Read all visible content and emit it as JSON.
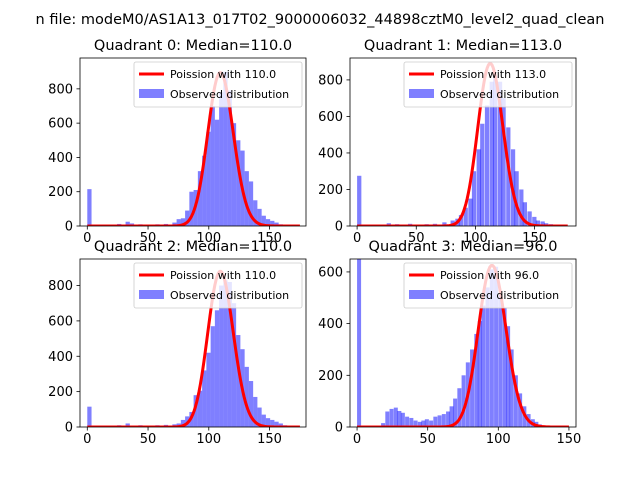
{
  "suptitle": "n file: modeM0/AS1A13_017T02_9000006032_44898cztM0_level2_quad_clean",
  "colors": {
    "fit": "#ff0000",
    "hist": "#0000ff"
  },
  "chart_data": [
    {
      "type": "bar",
      "title": "Quadrant 0: Median=110.0",
      "xlim": [
        -6,
        180
      ],
      "ylim": [
        0,
        980
      ],
      "xticks": [
        0,
        50,
        100,
        150
      ],
      "yticks": [
        0,
        200,
        400,
        600,
        800
      ],
      "legend": {
        "placement": "top-right",
        "entries": [
          "Poission with 110.0",
          "Observed distribution"
        ]
      },
      "series": [
        {
          "name": "Observed distribution",
          "kind": "histogram",
          "bin_width": 3.5,
          "x": [
            0,
            24.5,
            31.5,
            35,
            42,
            49,
            56,
            63,
            70,
            73.5,
            77,
            80.5,
            84,
            87.5,
            91,
            94.5,
            98,
            101.5,
            105,
            108.5,
            112,
            115.5,
            119,
            122.5,
            126,
            129.5,
            133,
            136.5,
            140,
            143.5,
            147,
            150.5,
            154,
            157.5,
            161,
            164.5,
            168
          ],
          "y": [
            215,
            12,
            25,
            15,
            10,
            8,
            10,
            12,
            20,
            40,
            45,
            90,
            200,
            210,
            320,
            410,
            550,
            700,
            620,
            780,
            900,
            790,
            600,
            500,
            440,
            320,
            260,
            150,
            100,
            60,
            40,
            30,
            20,
            10,
            8,
            5,
            3
          ]
        },
        {
          "name": "Poission with 110.0",
          "kind": "line",
          "mu": 110,
          "amplitude": 895,
          "x_max": 175
        }
      ]
    },
    {
      "type": "bar",
      "title": "Quadrant 1: Median=113.0",
      "xlim": [
        -6,
        185
      ],
      "ylim": [
        0,
        920
      ],
      "xticks": [
        0,
        50,
        100,
        150
      ],
      "yticks": [
        0,
        200,
        400,
        600,
        800
      ],
      "legend": {
        "placement": "top-right",
        "entries": [
          "Poission with 113.0",
          "Observed distribution"
        ]
      },
      "series": [
        {
          "name": "Observed distribution",
          "kind": "histogram",
          "bin_width": 3.6,
          "x": [
            0,
            25,
            32,
            43,
            50,
            57,
            64,
            72,
            79,
            83,
            86,
            90,
            94,
            97,
            101,
            104,
            108,
            112,
            115,
            119,
            122,
            126,
            130,
            133,
            137,
            140,
            144,
            148,
            151,
            155,
            158,
            162,
            166,
            170
          ],
          "y": [
            275,
            15,
            10,
            12,
            8,
            10,
            12,
            20,
            30,
            40,
            60,
            100,
            150,
            300,
            420,
            560,
            660,
            790,
            820,
            790,
            700,
            540,
            420,
            300,
            200,
            130,
            80,
            50,
            30,
            25,
            15,
            10,
            6,
            4
          ]
        },
        {
          "name": "Poission with 113.0",
          "kind": "line",
          "mu": 113,
          "amplitude": 890,
          "x_max": 178
        }
      ]
    },
    {
      "type": "bar",
      "title": "Quadrant 2: Median=110.0",
      "xlim": [
        -6,
        180
      ],
      "ylim": [
        0,
        950
      ],
      "xticks": [
        0,
        50,
        100,
        150
      ],
      "yticks": [
        0,
        200,
        400,
        600,
        800
      ],
      "legend": {
        "placement": "top-right",
        "entries": [
          "Poission with 110.0",
          "Observed distribution"
        ]
      },
      "series": [
        {
          "name": "Observed distribution",
          "kind": "histogram",
          "bin_width": 3.5,
          "x": [
            0,
            24.5,
            31.5,
            42,
            49,
            56,
            63,
            70,
            73.5,
            77,
            80.5,
            84,
            87.5,
            91,
            94.5,
            98,
            101.5,
            105,
            108.5,
            112,
            115.5,
            119,
            122.5,
            126,
            129.5,
            133,
            136.5,
            140,
            143.5,
            147,
            150.5,
            154,
            157.5,
            161,
            164.5
          ],
          "y": [
            115,
            10,
            20,
            10,
            8,
            10,
            12,
            15,
            20,
            40,
            60,
            85,
            180,
            205,
            320,
            420,
            570,
            660,
            800,
            830,
            820,
            700,
            520,
            440,
            340,
            260,
            170,
            110,
            70,
            50,
            40,
            30,
            20,
            10,
            5
          ]
        },
        {
          "name": "Poission with 110.0",
          "kind": "line",
          "mu": 110,
          "amplitude": 880,
          "x_max": 175
        }
      ]
    },
    {
      "type": "bar",
      "title": "Quadrant 3: Median=96.0",
      "xlim": [
        -5,
        155
      ],
      "ylim": [
        0,
        650
      ],
      "xticks": [
        0,
        50,
        100,
        150
      ],
      "yticks": [
        0,
        200,
        400,
        600
      ],
      "legend": {
        "placement": "top-right",
        "entries": [
          "Poission with 96.0",
          "Observed distribution"
        ]
      },
      "series": [
        {
          "name": "Observed distribution",
          "kind": "histogram",
          "bin_width": 2.85,
          "x": [
            0,
            17,
            20,
            23,
            26,
            28.5,
            31,
            34,
            37,
            40,
            43,
            45.5,
            48,
            51,
            54,
            57,
            60,
            63,
            65.5,
            68,
            71,
            74,
            77,
            80,
            83,
            85.5,
            88,
            91,
            94,
            97,
            100,
            103,
            105.5,
            108,
            111,
            114,
            117,
            120,
            123,
            125.5,
            128,
            131,
            134,
            137
          ],
          "y": [
            650,
            15,
            60,
            70,
            75,
            62,
            55,
            40,
            35,
            25,
            20,
            25,
            30,
            25,
            40,
            45,
            50,
            60,
            80,
            110,
            150,
            200,
            250,
            300,
            360,
            410,
            470,
            540,
            610,
            620,
            510,
            460,
            390,
            300,
            200,
            130,
            80,
            50,
            30,
            20,
            10,
            6,
            4,
            2
          ]
        },
        {
          "name": "Poission with 96.0",
          "kind": "line",
          "mu": 96,
          "amplitude": 625,
          "x_max": 150
        }
      ]
    }
  ]
}
